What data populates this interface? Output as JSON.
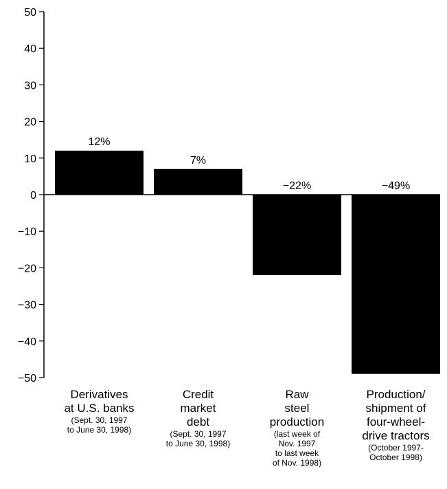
{
  "chart_data": {
    "type": "bar",
    "categories": [
      {
        "label_lines": [
          "Derivatives",
          "at U.S. banks"
        ],
        "note_lines": [
          "(Sept. 30, 1997",
          "to June 30, 1998)"
        ]
      },
      {
        "label_lines": [
          "Credit",
          "market",
          "debt"
        ],
        "note_lines": [
          "(Sept. 30, 1997",
          "to June 30, 1998)"
        ]
      },
      {
        "label_lines": [
          "Raw",
          "steel",
          "production"
        ],
        "note_lines": [
          "(last week of",
          "Nov. 1997",
          "to last week",
          "of Nov. 1998)"
        ]
      },
      {
        "label_lines": [
          "Production/",
          "shipment of",
          "four-wheel-",
          "drive tractors"
        ],
        "note_lines": [
          "(October 1997-",
          "October 1998)"
        ]
      }
    ],
    "values": [
      12,
      7,
      -22,
      -49
    ],
    "data_labels": [
      "12%",
      "7%",
      "−22%",
      "−49%"
    ],
    "ylim": [
      -50,
      50
    ],
    "yticks": [
      50,
      40,
      30,
      20,
      10,
      0,
      -10,
      -20,
      -30,
      -40,
      -50
    ],
    "ytick_labels": [
      "50",
      "40",
      "30",
      "20",
      "10",
      "0",
      "−10",
      "−20",
      "−30",
      "−40",
      "−50"
    ],
    "bar_color": "#000000",
    "grid": false,
    "legend": "none"
  }
}
